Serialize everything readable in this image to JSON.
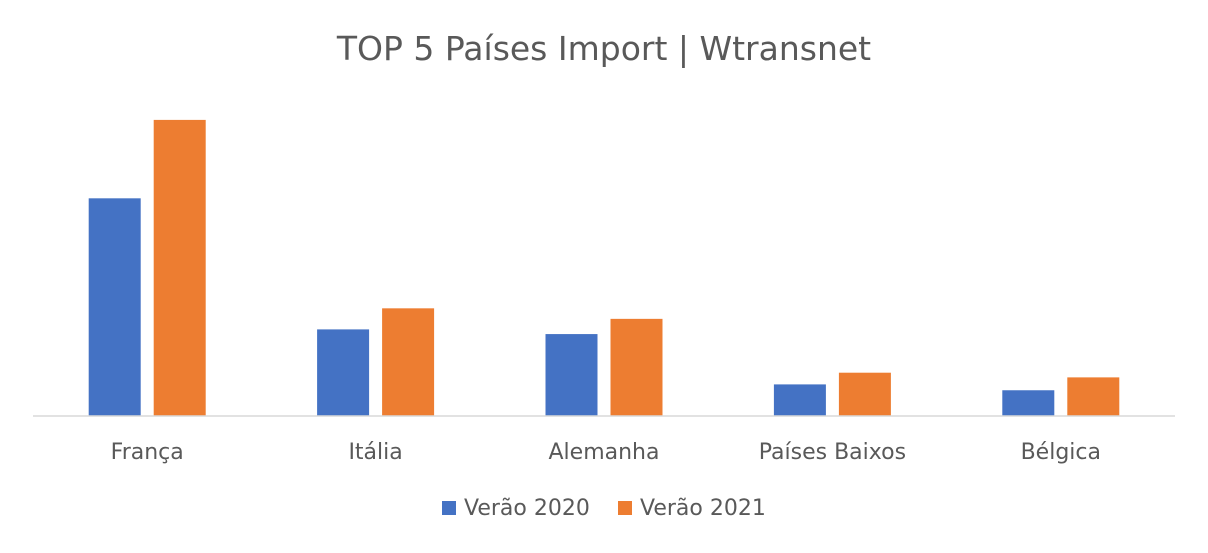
{
  "chart_data": {
    "type": "bar",
    "title": "TOP 5 Países Import | Wtransnet",
    "categories": [
      "França",
      "Itália",
      "Alemanha",
      "Países Baixos",
      "Bélgica"
    ],
    "series": [
      {
        "name": "Verão 2020",
        "color": "#4472C4",
        "values": [
          186,
          74,
          70,
          27,
          22
        ]
      },
      {
        "name": "Verão 2021",
        "color": "#ED7D31",
        "values": [
          253,
          92,
          83,
          37,
          33
        ]
      }
    ],
    "ylim": [
      0,
      270
    ],
    "grid": false,
    "legend": "bottom",
    "xlabel": "",
    "ylabel": ""
  }
}
